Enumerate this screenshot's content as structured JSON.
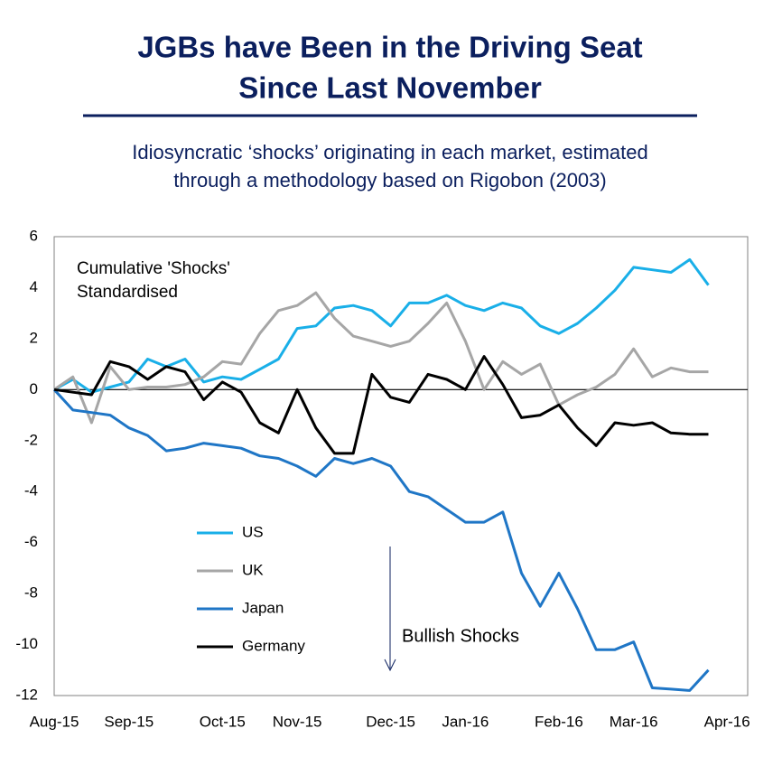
{
  "chart_data": {
    "type": "line",
    "title": [
      "JGBs have Been in the Driving Seat",
      "Since Last November"
    ],
    "subtitle": [
      "Idiosyncratic ‘shocks’ originating in each market, estimated",
      "through a methodology based on Rigobon (2003)"
    ],
    "annotations": [
      "Cumulative 'Shocks'",
      "Standardised",
      "Bullish Shocks"
    ],
    "categories": [
      "Aug-15",
      null,
      null,
      null,
      "Sep-15",
      null,
      null,
      null,
      null,
      "Oct-15",
      null,
      null,
      null,
      "Nov-15",
      null,
      null,
      null,
      null,
      "Dec-15",
      null,
      null,
      null,
      "Jan-16",
      null,
      null,
      null,
      null,
      "Feb-16",
      null,
      null,
      null,
      "Mar-16",
      null,
      null,
      null,
      null,
      "Apr-16"
    ],
    "series": [
      {
        "name": "US",
        "color": "#19afe8",
        "values": [
          0,
          0.4,
          -0.1,
          0.1,
          0.3,
          1.2,
          0.9,
          1.2,
          0.3,
          0.5,
          0.4,
          0.8,
          1.2,
          2.4,
          2.5,
          3.2,
          3.3,
          3.1,
          2.5,
          3.4,
          3.4,
          3.7,
          3.3,
          3.1,
          3.4,
          3.2,
          2.5,
          2.2,
          2.6,
          3.2,
          3.9,
          4.8,
          4.7,
          4.6,
          5.1,
          4.1,
          null
        ]
      },
      {
        "name": "UK",
        "color": "#a6a6a6",
        "values": [
          0,
          0.5,
          -1.3,
          0.9,
          0.0,
          0.1,
          0.1,
          0.2,
          0.5,
          1.1,
          1.0,
          2.2,
          3.1,
          3.3,
          3.8,
          2.8,
          2.1,
          1.9,
          1.7,
          1.9,
          2.6,
          3.4,
          1.9,
          0.0,
          1.1,
          0.6,
          1.0,
          -0.6,
          -0.2,
          0.1,
          0.6,
          1.6,
          0.5,
          0.85,
          0.7,
          0.7,
          null
        ]
      },
      {
        "name": "Japan",
        "color": "#1f76c6",
        "values": [
          0,
          -0.8,
          -0.9,
          -1.0,
          -1.5,
          -1.8,
          -2.4,
          -2.3,
          -2.1,
          -2.2,
          -2.3,
          -2.6,
          -2.7,
          -3.0,
          -3.4,
          -2.7,
          -2.9,
          -2.7,
          -3.0,
          -4.0,
          -4.2,
          -4.7,
          -5.2,
          -5.2,
          -4.8,
          -7.2,
          -8.5,
          -7.2,
          -8.6,
          -10.2,
          -10.2,
          -9.9,
          -11.7,
          -11.75,
          -11.8,
          -11.0,
          null
        ]
      },
      {
        "name": "Germany",
        "color": "#000000",
        "values": [
          0,
          -0.1,
          -0.2,
          1.1,
          0.9,
          0.4,
          0.9,
          0.7,
          -0.4,
          0.3,
          -0.1,
          -1.3,
          -1.7,
          0.0,
          -1.5,
          -2.5,
          -2.5,
          0.6,
          -0.3,
          -0.5,
          0.6,
          0.4,
          0.0,
          1.3,
          0.2,
          -1.1,
          -1.0,
          -0.6,
          -1.5,
          -2.2,
          -1.3,
          -1.4,
          -1.3,
          -1.7,
          -1.75,
          -1.75,
          null
        ]
      }
    ],
    "ylim": [
      -12,
      6
    ],
    "yticks": [
      -12,
      -10,
      -8,
      -6,
      -4,
      -2,
      0,
      2,
      4,
      6
    ]
  }
}
